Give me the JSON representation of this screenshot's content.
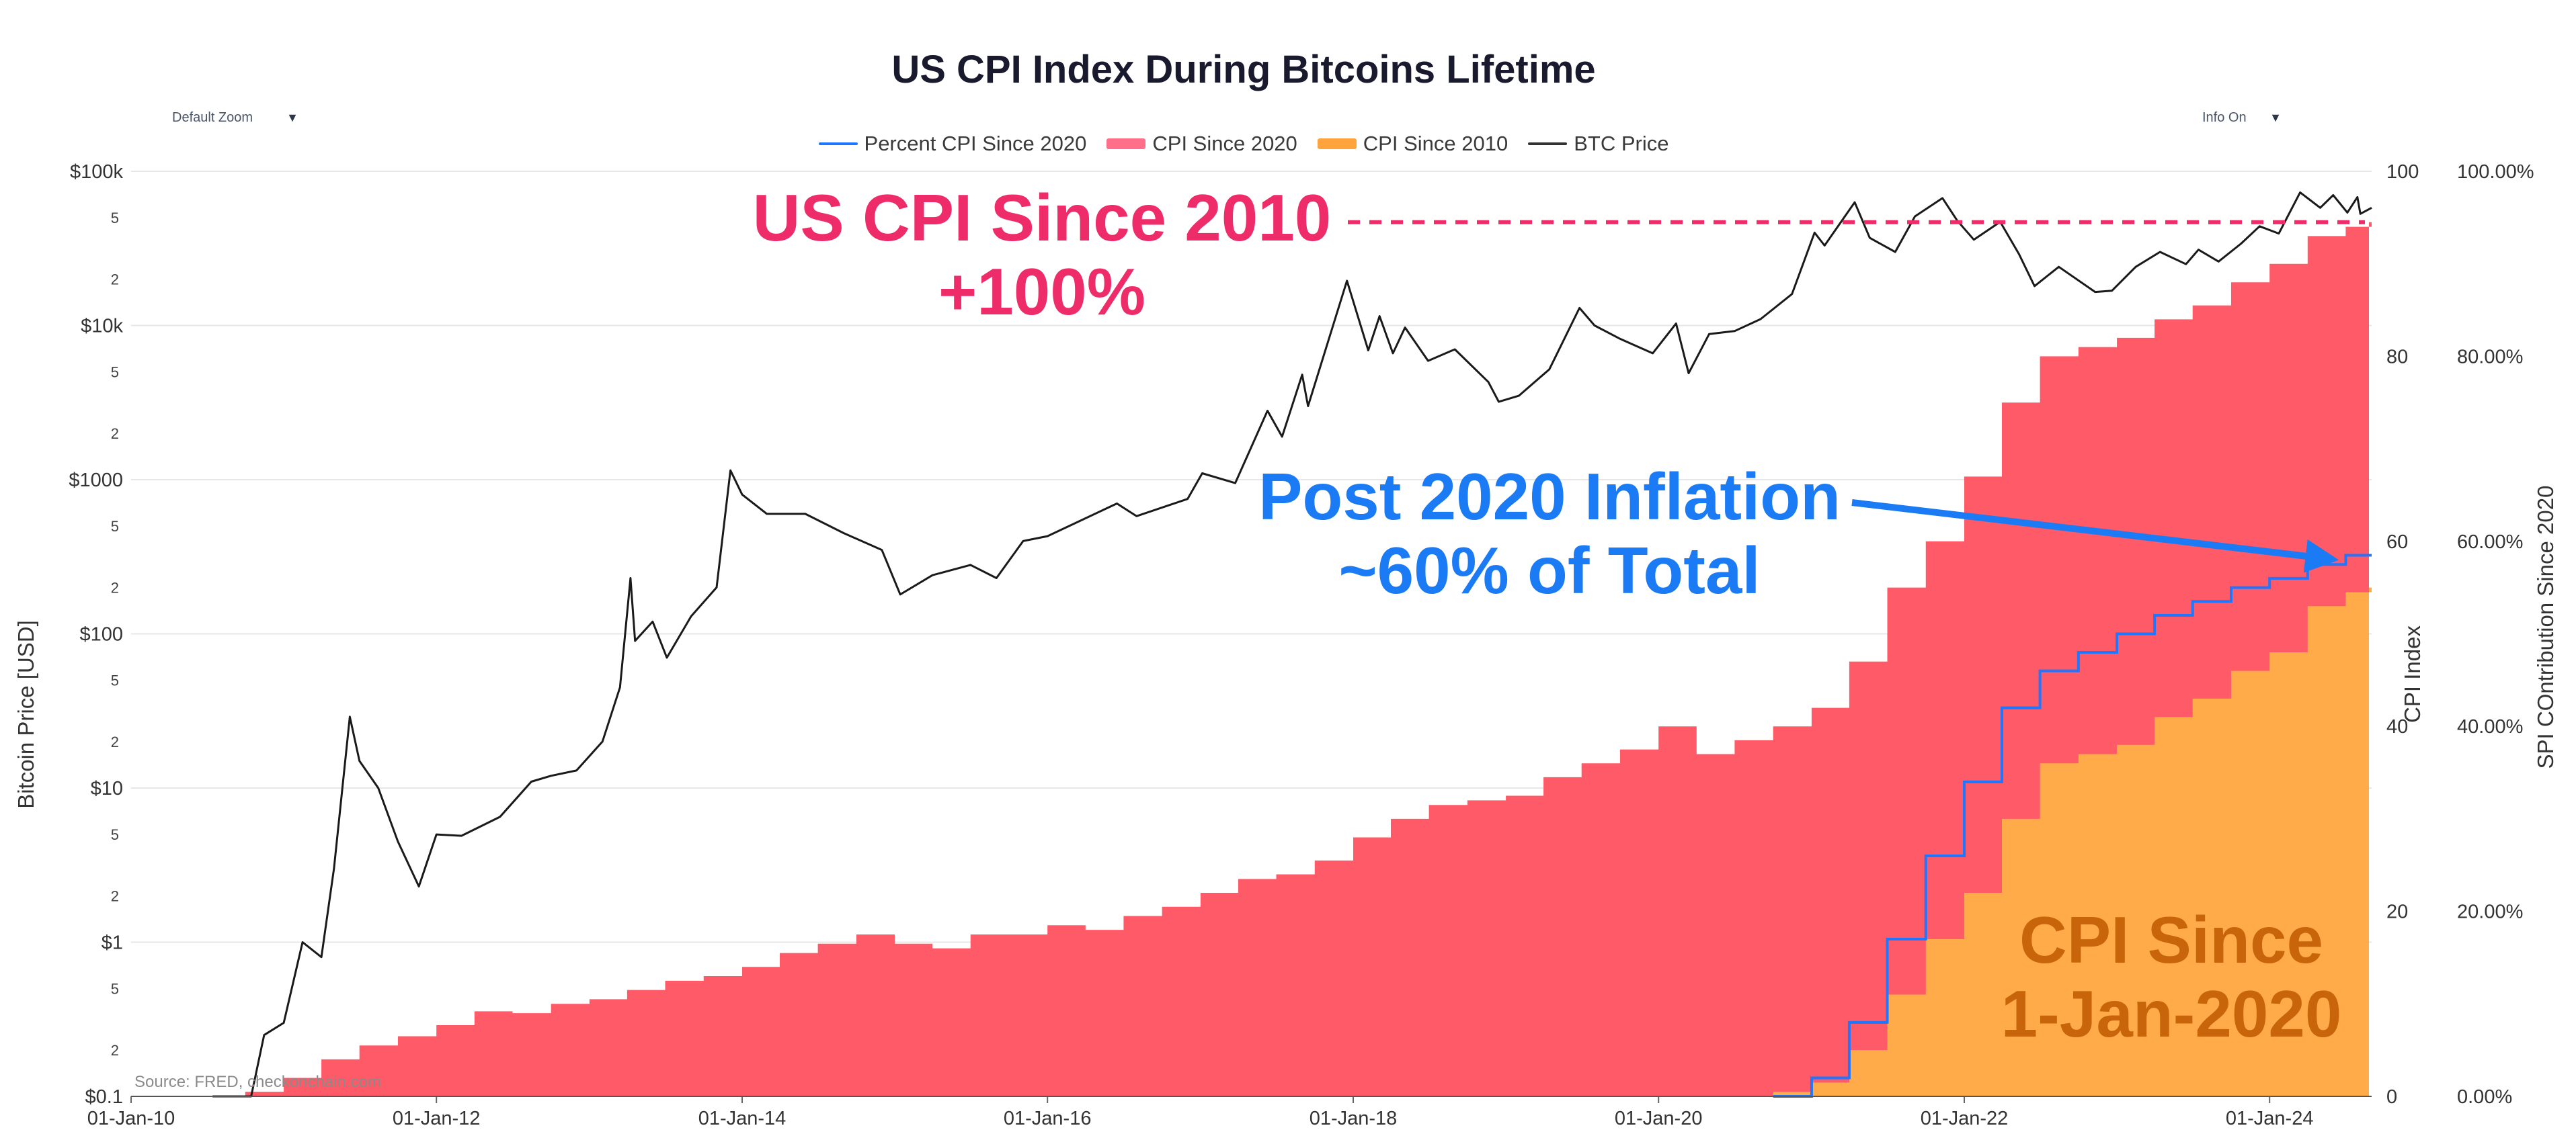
{
  "title": "US CPI Index During Bitcoins Lifetime",
  "controls": {
    "zoom": {
      "label": "Default Zoom"
    },
    "info": {
      "label": "Info On"
    }
  },
  "legend": [
    {
      "label": "Percent CPI Since 2020",
      "color": "#1f77ff",
      "kind": "line"
    },
    {
      "label": "CPI Since 2020",
      "color": "#ff6f8a",
      "kind": "block"
    },
    {
      "label": "CPI Since 2010",
      "color": "#ffa43c",
      "kind": "block"
    },
    {
      "label": "BTC Price",
      "color": "#333333",
      "kind": "line"
    }
  ],
  "annotations": {
    "cpi_2010_line1": "US CPI Since 2010",
    "cpi_2010_line2": "+100%",
    "post2020_line1": "Post 2020 Inflation",
    "post2020_line2": "~60% of Total",
    "since2020_line1": "CPI Since",
    "since2020_line2": "1-Jan-2020"
  },
  "source": "Source: FRED, checkonchain.com",
  "colors": {
    "cpi_since_2010": "#ff5a67",
    "cpi_since_2020": "#ffab4a",
    "percent_line": "#1f77ff",
    "btc_line": "#1a1a1a",
    "annot_pink": "#ef2c6a",
    "annot_blue": "#1a7bf5",
    "annot_orange": "#c8650a",
    "grid": "#e7e7e7"
  },
  "chart_data": {
    "type": "area",
    "x_ticks": [
      "01-Jan-10",
      "01-Jan-12",
      "01-Jan-14",
      "01-Jan-16",
      "01-Jan-18",
      "01-Jan-20",
      "01-Jan-22",
      "01-Jan-24"
    ],
    "xlim": [
      "2010-01-01",
      "2024-09-01"
    ],
    "y_left": {
      "label": "Bitcoin Price [USD]",
      "scale": "log",
      "range": [
        0.1,
        100000
      ],
      "major_ticks": [
        {
          "value": 100000,
          "label": "$100k"
        },
        {
          "value": 10000,
          "label": "$10k"
        },
        {
          "value": 1000,
          "label": "$1000"
        },
        {
          "value": 100,
          "label": "$100"
        },
        {
          "value": 10,
          "label": "$10"
        },
        {
          "value": 1,
          "label": "$1"
        },
        {
          "value": 0.1,
          "label": "$0.1"
        }
      ],
      "minor_ticks": [
        {
          "value": 50000,
          "label": "5"
        },
        {
          "value": 20000,
          "label": "2"
        },
        {
          "value": 5000,
          "label": "5"
        },
        {
          "value": 2000,
          "label": "2"
        },
        {
          "value": 500,
          "label": "5"
        },
        {
          "value": 200,
          "label": "2"
        },
        {
          "value": 50,
          "label": "5"
        },
        {
          "value": 20,
          "label": "2"
        },
        {
          "value": 5,
          "label": "5"
        },
        {
          "value": 2,
          "label": "2"
        },
        {
          "value": 0.5,
          "label": "5"
        },
        {
          "value": 0.2,
          "label": "2"
        }
      ]
    },
    "y_right1": {
      "label": "CPI Index",
      "range": [
        0,
        100
      ],
      "ticks": [
        {
          "value": 0,
          "label": "0"
        },
        {
          "value": 20,
          "label": "20"
        },
        {
          "value": 40,
          "label": "40"
        },
        {
          "value": 60,
          "label": "60"
        },
        {
          "value": 80,
          "label": "80"
        },
        {
          "value": 100,
          "label": "100"
        }
      ]
    },
    "y_right2": {
      "label": "SPI COntribution Since 2020",
      "range": [
        0,
        100
      ],
      "ticks": [
        {
          "value": 0,
          "label": "0.00%"
        },
        {
          "value": 20,
          "label": "20.00%"
        },
        {
          "value": 40,
          "label": "40.00%"
        },
        {
          "value": 60,
          "label": "60.00%"
        },
        {
          "value": 80,
          "label": "80.00%"
        },
        {
          "value": 100,
          "label": "100.00%"
        }
      ]
    },
    "series": [
      {
        "name": "CPI Since 2010",
        "axis": "y_right1",
        "points": [
          [
            "2010-07-01",
            0
          ],
          [
            "2010-10-01",
            0.5
          ],
          [
            "2011-01-01",
            2.0
          ],
          [
            "2011-04-01",
            4.0
          ],
          [
            "2011-07-01",
            5.5
          ],
          [
            "2011-10-01",
            6.5
          ],
          [
            "2012-01-01",
            7.7
          ],
          [
            "2012-04-01",
            9.2
          ],
          [
            "2012-07-01",
            9.0
          ],
          [
            "2012-10-01",
            10.0
          ],
          [
            "2013-01-01",
            10.5
          ],
          [
            "2013-04-01",
            11.5
          ],
          [
            "2013-07-01",
            12.5
          ],
          [
            "2013-10-01",
            13.0
          ],
          [
            "2014-01-01",
            14.0
          ],
          [
            "2014-04-01",
            15.5
          ],
          [
            "2014-07-01",
            16.5
          ],
          [
            "2014-10-01",
            17.5
          ],
          [
            "2015-01-01",
            16.5
          ],
          [
            "2015-04-01",
            16.0
          ],
          [
            "2015-07-01",
            17.5
          ],
          [
            "2015-10-01",
            17.5
          ],
          [
            "2016-01-01",
            18.5
          ],
          [
            "2016-04-01",
            18.0
          ],
          [
            "2016-07-01",
            19.5
          ],
          [
            "2016-10-01",
            20.5
          ],
          [
            "2017-01-01",
            22.0
          ],
          [
            "2017-04-01",
            23.5
          ],
          [
            "2017-07-01",
            24.0
          ],
          [
            "2017-10-01",
            25.5
          ],
          [
            "2018-01-01",
            28.0
          ],
          [
            "2018-04-01",
            30.0
          ],
          [
            "2018-07-01",
            31.5
          ],
          [
            "2018-10-01",
            32.0
          ],
          [
            "2019-01-01",
            32.5
          ],
          [
            "2019-04-01",
            34.5
          ],
          [
            "2019-07-01",
            36.0
          ],
          [
            "2019-10-01",
            37.5
          ],
          [
            "2020-01-01",
            40.0
          ],
          [
            "2020-04-01",
            37.0
          ],
          [
            "2020-07-01",
            38.5
          ],
          [
            "2020-10-01",
            40.0
          ],
          [
            "2021-01-01",
            42.0
          ],
          [
            "2021-04-01",
            47.0
          ],
          [
            "2021-07-01",
            55.0
          ],
          [
            "2021-10-01",
            60.0
          ],
          [
            "2022-01-01",
            67.0
          ],
          [
            "2022-04-01",
            75.0
          ],
          [
            "2022-07-01",
            80.0
          ],
          [
            "2022-10-01",
            81.0
          ],
          [
            "2023-01-01",
            82.0
          ],
          [
            "2023-04-01",
            84.0
          ],
          [
            "2023-07-01",
            85.5
          ],
          [
            "2023-10-01",
            88.0
          ],
          [
            "2024-01-01",
            90.0
          ],
          [
            "2024-04-01",
            93.0
          ],
          [
            "2024-07-01",
            94.0
          ],
          [
            "2024-09-01",
            94.5
          ]
        ]
      },
      {
        "name": "CPI Since 2020",
        "axis": "y_right1",
        "points": [
          [
            "2020-07-01",
            0
          ],
          [
            "2020-10-01",
            0.5
          ],
          [
            "2021-01-01",
            1.5
          ],
          [
            "2021-04-01",
            5.0
          ],
          [
            "2021-07-01",
            11.0
          ],
          [
            "2021-10-01",
            17.0
          ],
          [
            "2022-01-01",
            22.0
          ],
          [
            "2022-04-01",
            30.0
          ],
          [
            "2022-07-01",
            36.0
          ],
          [
            "2022-10-01",
            37.0
          ],
          [
            "2023-01-01",
            38.0
          ],
          [
            "2023-04-01",
            41.0
          ],
          [
            "2023-07-01",
            43.0
          ],
          [
            "2023-10-01",
            46.0
          ],
          [
            "2024-01-01",
            48.0
          ],
          [
            "2024-04-01",
            53.0
          ],
          [
            "2024-07-01",
            54.5
          ],
          [
            "2024-09-01",
            55.0
          ]
        ]
      },
      {
        "name": "Percent CPI Since 2020",
        "axis": "y_right2",
        "points": [
          [
            "2020-10-01",
            0
          ],
          [
            "2021-01-01",
            2.0
          ],
          [
            "2021-04-01",
            8.0
          ],
          [
            "2021-07-01",
            17.0
          ],
          [
            "2021-10-01",
            26.0
          ],
          [
            "2022-01-01",
            34.0
          ],
          [
            "2022-04-01",
            42.0
          ],
          [
            "2022-07-01",
            46.0
          ],
          [
            "2022-10-01",
            48.0
          ],
          [
            "2023-01-01",
            50.0
          ],
          [
            "2023-04-01",
            52.0
          ],
          [
            "2023-07-01",
            53.5
          ],
          [
            "2023-10-01",
            55.0
          ],
          [
            "2024-01-01",
            56.0
          ],
          [
            "2024-04-01",
            57.5
          ],
          [
            "2024-07-01",
            58.5
          ],
          [
            "2024-09-01",
            58.5
          ]
        ]
      },
      {
        "name": "BTC Price",
        "axis": "y_left",
        "points": [
          [
            "2010-07-15",
            0.06
          ],
          [
            "2010-09-01",
            0.06
          ],
          [
            "2010-10-15",
            0.1
          ],
          [
            "2010-11-15",
            0.25
          ],
          [
            "2011-01-01",
            0.3
          ],
          [
            "2011-02-15",
            1.0
          ],
          [
            "2011-04-01",
            0.8
          ],
          [
            "2011-05-01",
            3.0
          ],
          [
            "2011-06-08",
            29
          ],
          [
            "2011-07-01",
            15
          ],
          [
            "2011-08-15",
            10
          ],
          [
            "2011-10-01",
            4.5
          ],
          [
            "2011-11-20",
            2.3
          ],
          [
            "2012-01-01",
            5.0
          ],
          [
            "2012-03-01",
            4.9
          ],
          [
            "2012-06-01",
            6.5
          ],
          [
            "2012-08-15",
            11
          ],
          [
            "2012-10-01",
            12
          ],
          [
            "2012-12-01",
            13
          ],
          [
            "2013-02-01",
            20
          ],
          [
            "2013-03-15",
            45
          ],
          [
            "2013-04-09",
            230
          ],
          [
            "2013-04-20",
            90
          ],
          [
            "2013-06-01",
            120
          ],
          [
            "2013-07-05",
            70
          ],
          [
            "2013-09-01",
            130
          ],
          [
            "2013-11-01",
            200
          ],
          [
            "2013-12-04",
            1150
          ],
          [
            "2014-01-01",
            800
          ],
          [
            "2014-03-01",
            600
          ],
          [
            "2014-06-01",
            600
          ],
          [
            "2014-09-01",
            450
          ],
          [
            "2014-12-01",
            350
          ],
          [
            "2015-01-14",
            180
          ],
          [
            "2015-04-01",
            240
          ],
          [
            "2015-07-01",
            280
          ],
          [
            "2015-09-01",
            230
          ],
          [
            "2015-11-04",
            400
          ],
          [
            "2016-01-01",
            430
          ],
          [
            "2016-06-15",
            700
          ],
          [
            "2016-08-01",
            580
          ],
          [
            "2016-12-01",
            750
          ],
          [
            "2017-01-05",
            1100
          ],
          [
            "2017-03-25",
            950
          ],
          [
            "2017-06-10",
            2800
          ],
          [
            "2017-07-15",
            1900
          ],
          [
            "2017-09-01",
            4800
          ],
          [
            "2017-09-15",
            3000
          ],
          [
            "2017-12-17",
            19500
          ],
          [
            "2018-02-06",
            6900
          ],
          [
            "2018-03-05",
            11500
          ],
          [
            "2018-04-06",
            6600
          ],
          [
            "2018-05-05",
            9700
          ],
          [
            "2018-06-29",
            5900
          ],
          [
            "2018-09-01",
            7000
          ],
          [
            "2018-11-20",
            4300
          ],
          [
            "2018-12-15",
            3200
          ],
          [
            "2019-02-01",
            3500
          ],
          [
            "2019-04-15",
            5200
          ],
          [
            "2019-06-26",
            13000
          ],
          [
            "2019-08-01",
            10000
          ],
          [
            "2019-10-01",
            8200
          ],
          [
            "2019-12-18",
            6600
          ],
          [
            "2020-02-12",
            10300
          ],
          [
            "2020-03-13",
            4900
          ],
          [
            "2020-05-01",
            8800
          ],
          [
            "2020-07-01",
            9200
          ],
          [
            "2020-09-01",
            11000
          ],
          [
            "2020-11-15",
            16000
          ],
          [
            "2021-01-08",
            40000
          ],
          [
            "2021-02-01",
            33000
          ],
          [
            "2021-04-14",
            63000
          ],
          [
            "2021-05-20",
            37000
          ],
          [
            "2021-07-20",
            30000
          ],
          [
            "2021-09-05",
            51000
          ],
          [
            "2021-11-10",
            67000
          ],
          [
            "2021-12-15",
            48000
          ],
          [
            "2022-01-24",
            36000
          ],
          [
            "2022-03-28",
            47000
          ],
          [
            "2022-05-12",
            29000
          ],
          [
            "2022-06-18",
            18000
          ],
          [
            "2022-08-15",
            24000
          ],
          [
            "2022-11-10",
            16500
          ],
          [
            "2022-12-20",
            16800
          ],
          [
            "2023-02-15",
            24000
          ],
          [
            "2023-04-14",
            30000
          ],
          [
            "2023-06-15",
            25000
          ],
          [
            "2023-07-15",
            31000
          ],
          [
            "2023-09-01",
            26000
          ],
          [
            "2023-10-25",
            34000
          ],
          [
            "2023-12-08",
            44000
          ],
          [
            "2024-01-23",
            39500
          ],
          [
            "2024-03-14",
            73000
          ],
          [
            "2024-05-01",
            58000
          ],
          [
            "2024-06-01",
            70000
          ],
          [
            "2024-07-05",
            54000
          ],
          [
            "2024-07-29",
            68000
          ],
          [
            "2024-08-05",
            53000
          ],
          [
            "2024-09-01",
            58000
          ]
        ]
      }
    ],
    "reference_line": {
      "label": "US CPI Since 2010",
      "axis": "y_right1",
      "value": 94.5
    },
    "arrow_target": {
      "date": "2024-07-01",
      "value": 58.5,
      "axis": "y_right2"
    }
  }
}
